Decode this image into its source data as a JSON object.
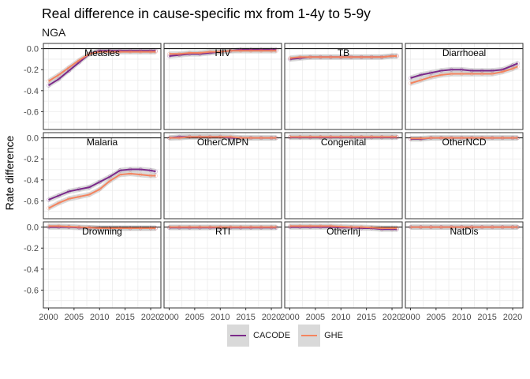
{
  "title": "Real difference in cause-specific mx from 1-4y to 5-9y",
  "subtitle": "NGA",
  "colors": {
    "CACODE": "#7b2a8a",
    "GHE": "#f4845f",
    "ribbon": "#bdbdbd",
    "grid": "#ebebeb",
    "panel_border": "#333333"
  },
  "chart_data": {
    "type": "line",
    "layout": "facet 3x4",
    "ylabel": "Rate difference",
    "xlabel": "",
    "xlim": [
      1999,
      2022
    ],
    "ylim": [
      -0.77,
      0.05
    ],
    "x_ticks": [
      "2000",
      "2005",
      "2010",
      "2015",
      "2020"
    ],
    "y_ticks": [
      "0.0",
      "-0.2",
      "-0.4",
      "-0.6"
    ],
    "x": [
      2000,
      2002,
      2004,
      2006,
      2008,
      2010,
      2012,
      2014,
      2016,
      2018,
      2020,
      2021
    ],
    "legend": [
      "CACODE",
      "GHE"
    ],
    "legend_position": "bottom",
    "facets": [
      {
        "label": "Measles",
        "series": [
          {
            "name": "CACODE",
            "values": [
              -0.35,
              -0.29,
              -0.21,
              -0.13,
              -0.05,
              -0.02,
              -0.02,
              -0.02,
              -0.02,
              -0.02,
              -0.02,
              -0.02
            ]
          },
          {
            "name": "GHE",
            "values": [
              -0.31,
              -0.25,
              -0.18,
              -0.11,
              -0.05,
              -0.03,
              -0.03,
              -0.03,
              -0.03,
              -0.03,
              -0.03,
              -0.03
            ]
          }
        ]
      },
      {
        "label": "HIV",
        "series": [
          {
            "name": "CACODE",
            "values": [
              -0.07,
              -0.06,
              -0.05,
              -0.05,
              -0.04,
              -0.03,
              -0.02,
              -0.01,
              -0.01,
              -0.01,
              -0.01,
              -0.01
            ]
          },
          {
            "name": "GHE",
            "values": [
              -0.05,
              -0.05,
              -0.04,
              -0.04,
              -0.03,
              -0.03,
              -0.02,
              -0.02,
              -0.02,
              -0.02,
              -0.02,
              -0.02
            ]
          }
        ]
      },
      {
        "label": "TB",
        "series": [
          {
            "name": "CACODE",
            "values": [
              -0.1,
              -0.09,
              -0.08,
              -0.08,
              -0.08,
              -0.08,
              -0.08,
              -0.08,
              -0.08,
              -0.08,
              -0.07,
              -0.07
            ]
          },
          {
            "name": "GHE",
            "values": [
              -0.09,
              -0.08,
              -0.08,
              -0.08,
              -0.08,
              -0.08,
              -0.08,
              -0.08,
              -0.08,
              -0.08,
              -0.07,
              -0.07
            ]
          }
        ]
      },
      {
        "label": "Diarrhoeal",
        "series": [
          {
            "name": "CACODE",
            "values": [
              -0.28,
              -0.25,
              -0.23,
              -0.21,
              -0.2,
              -0.2,
              -0.21,
              -0.21,
              -0.21,
              -0.2,
              -0.16,
              -0.14
            ]
          },
          {
            "name": "GHE",
            "values": [
              -0.33,
              -0.3,
              -0.27,
              -0.25,
              -0.24,
              -0.24,
              -0.24,
              -0.24,
              -0.24,
              -0.22,
              -0.19,
              -0.17
            ]
          }
        ]
      },
      {
        "label": "Malaria",
        "series": [
          {
            "name": "CACODE",
            "values": [
              -0.59,
              -0.55,
              -0.51,
              -0.49,
              -0.47,
              -0.42,
              -0.37,
              -0.31,
              -0.3,
              -0.3,
              -0.31,
              -0.32
            ]
          },
          {
            "name": "GHE",
            "values": [
              -0.67,
              -0.62,
              -0.58,
              -0.56,
              -0.54,
              -0.49,
              -0.41,
              -0.35,
              -0.34,
              -0.35,
              -0.36,
              -0.36
            ]
          }
        ]
      },
      {
        "label": "OtherCMPN",
        "series": [
          {
            "name": "CACODE",
            "values": [
              0.0,
              0.01,
              0.01,
              0.01,
              0.01,
              0.01,
              0.0,
              0.0,
              0.0,
              0.0,
              0.0,
              0.0
            ]
          },
          {
            "name": "GHE",
            "values": [
              0.0,
              0.0,
              0.01,
              0.01,
              0.01,
              0.01,
              0.01,
              0.0,
              0.0,
              0.0,
              0.0,
              0.0
            ]
          }
        ]
      },
      {
        "label": "Congenital",
        "series": [
          {
            "name": "CACODE",
            "values": [
              0.005,
              0.005,
              0.005,
              0.005,
              0.005,
              0.005,
              0.005,
              0.005,
              0.005,
              0.005,
              0.005,
              0.005
            ]
          },
          {
            "name": "GHE",
            "values": [
              0.01,
              0.01,
              0.01,
              0.01,
              0.01,
              0.01,
              0.01,
              0.01,
              0.01,
              0.01,
              0.01,
              0.01
            ]
          }
        ]
      },
      {
        "label": "OtherNCD",
        "series": [
          {
            "name": "CACODE",
            "values": [
              -0.01,
              -0.01,
              0.0,
              0.0,
              0.0,
              0.0,
              0.0,
              0.0,
              0.0,
              0.0,
              0.0,
              0.0
            ]
          },
          {
            "name": "GHE",
            "values": [
              -0.005,
              -0.005,
              0.0,
              0.0,
              0.0,
              0.0,
              0.0,
              0.0,
              0.0,
              0.0,
              0.0,
              0.0
            ]
          }
        ]
      },
      {
        "label": "Drowning",
        "series": [
          {
            "name": "CACODE",
            "values": [
              0.0,
              0.0,
              0.0,
              -0.005,
              -0.005,
              -0.01,
              -0.01,
              -0.01,
              -0.01,
              -0.01,
              -0.01,
              -0.01
            ]
          },
          {
            "name": "GHE",
            "values": [
              0.01,
              0.01,
              0.005,
              0.0,
              -0.005,
              -0.01,
              -0.01,
              -0.01,
              -0.01,
              -0.01,
              -0.01,
              -0.01
            ]
          }
        ]
      },
      {
        "label": "RTI",
        "series": [
          {
            "name": "CACODE",
            "values": [
              -0.005,
              -0.005,
              -0.005,
              -0.005,
              -0.005,
              -0.005,
              -0.005,
              -0.005,
              -0.005,
              -0.005,
              -0.005,
              -0.005
            ]
          },
          {
            "name": "GHE",
            "values": [
              0.0,
              0.0,
              0.0,
              0.0,
              0.0,
              0.0,
              0.0,
              0.0,
              0.0,
              0.0,
              0.0,
              0.0
            ]
          }
        ]
      },
      {
        "label": "OtherInj",
        "series": [
          {
            "name": "CACODE",
            "values": [
              0.0,
              0.0,
              0.0,
              0.0,
              0.0,
              -0.005,
              -0.005,
              -0.01,
              -0.01,
              -0.02,
              -0.02,
              -0.02
            ]
          },
          {
            "name": "GHE",
            "values": [
              0.01,
              0.01,
              0.01,
              0.01,
              0.01,
              0.005,
              0.0,
              0.0,
              -0.005,
              -0.01,
              -0.01,
              -0.01
            ]
          }
        ]
      },
      {
        "label": "NatDis",
        "series": [
          {
            "name": "CACODE",
            "values": [
              0.0,
              0.0,
              0.0,
              0.0,
              0.0,
              0.0,
              0.0,
              0.0,
              0.0,
              0.0,
              0.0,
              0.0
            ]
          },
          {
            "name": "GHE",
            "values": [
              0.0,
              0.0,
              0.0,
              0.0,
              0.0,
              0.0,
              0.0,
              0.0,
              0.0,
              0.0,
              0.0,
              0.0
            ]
          }
        ]
      }
    ]
  }
}
